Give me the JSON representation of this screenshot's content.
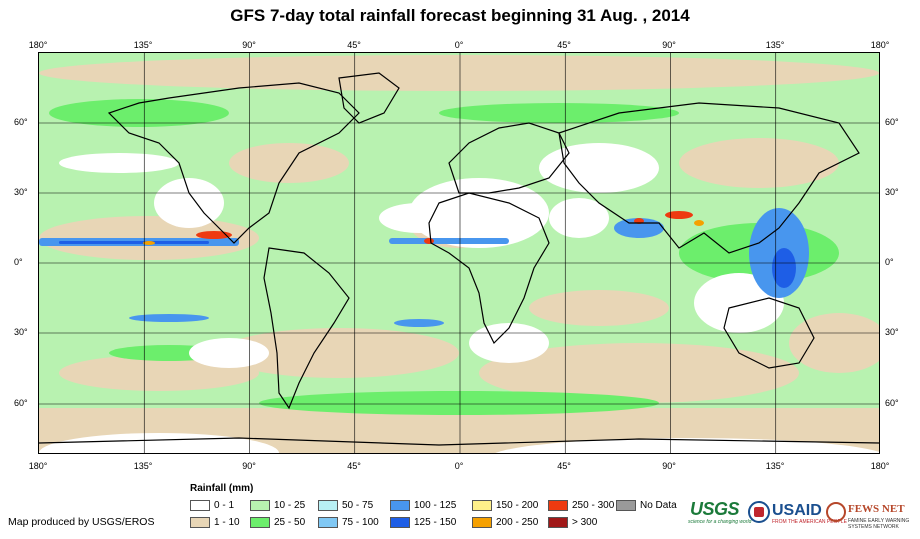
{
  "title": "GFS 7-day total rainfall forecast beginning 31 Aug. , 2014",
  "longitude_ticks": [
    "180°",
    "135°",
    "90°",
    "45°",
    "0°",
    "45°",
    "90°",
    "135°",
    "180°"
  ],
  "latitude_ticks": [
    "60°",
    "30°",
    "0°",
    "30°",
    "60°"
  ],
  "legend": {
    "title": "Rainfall (mm)",
    "items": [
      {
        "label": "0 - 1",
        "color": "#ffffff"
      },
      {
        "label": "1 - 10",
        "color": "#e8d6b6"
      },
      {
        "label": "10 - 25",
        "color": "#b8f2b0"
      },
      {
        "label": "25 - 50",
        "color": "#6cee6c"
      },
      {
        "label": "50 - 75",
        "color": "#b8f0f4"
      },
      {
        "label": "75 - 100",
        "color": "#80c8f4"
      },
      {
        "label": "100 - 125",
        "color": "#4896ee"
      },
      {
        "label": "125 - 150",
        "color": "#1e5ee6"
      },
      {
        "label": "150 - 200",
        "color": "#fff08a"
      },
      {
        "label": "200 - 250",
        "color": "#f5a000"
      },
      {
        "label": "250 - 300",
        "color": "#ee3a10"
      },
      {
        "label": "> 300",
        "color": "#a01818"
      },
      {
        "label": "No Data",
        "color": "#9a9a9a"
      }
    ]
  },
  "credit": "Map produced by USGS/EROS",
  "logos": {
    "usgs": "USGS",
    "usgs_tagline": "science for a changing world",
    "usaid": "USAID",
    "usaid_tagline": "FROM THE AMERICAN PEOPLE",
    "fews": "FEWS NET",
    "fews_tagline": "FAMINE EARLY WARNING SYSTEMS NETWORK"
  }
}
